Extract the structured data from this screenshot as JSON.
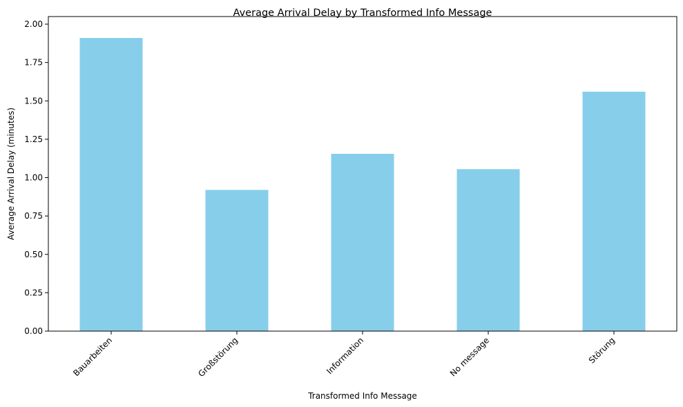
{
  "chart_data": {
    "type": "bar",
    "title": "Average Arrival Delay by Transformed Info Message",
    "xlabel": "Transformed Info Message",
    "ylabel": "Average Arrival Delay (minutes)",
    "categories": [
      "Bauarbeiten",
      "Großstörung",
      "Information",
      "No message",
      "Störung"
    ],
    "values": [
      1.91,
      0.92,
      1.155,
      1.055,
      1.56
    ],
    "ylim": [
      0,
      2.0
    ],
    "yticks": [
      "0.00",
      "0.25",
      "0.50",
      "0.75",
      "1.00",
      "1.25",
      "1.50",
      "1.75",
      "2.00"
    ],
    "bar_color": "#87CEEB",
    "grid": false,
    "legend": "none"
  }
}
